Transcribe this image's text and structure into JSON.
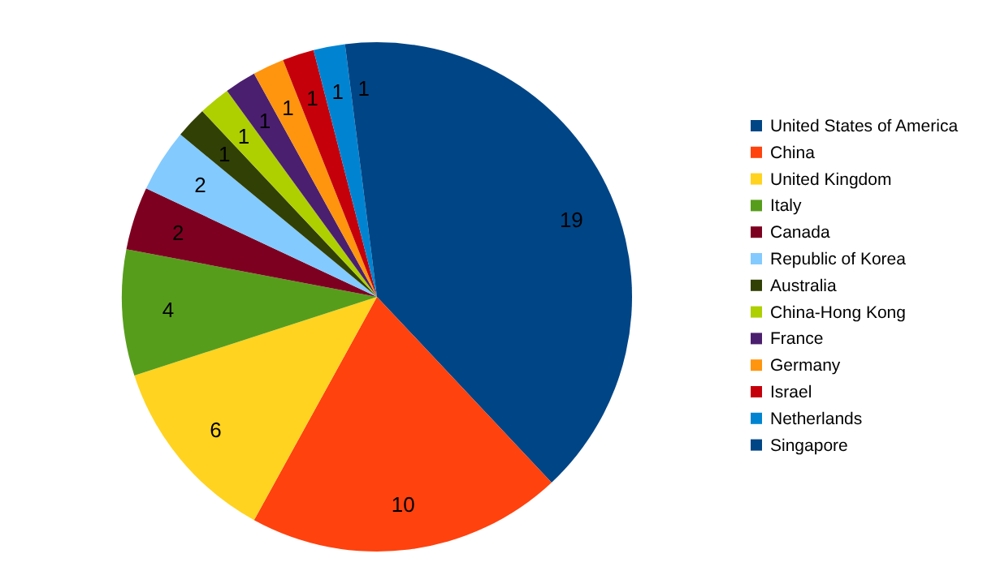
{
  "chart_data": {
    "type": "pie",
    "categories": [
      "United States of America",
      "China",
      "United Kingdom",
      "Italy",
      "Canada",
      "Republic of Korea",
      "Australia",
      "China-Hong Kong",
      "France",
      "Germany",
      "Israel",
      "Netherlands",
      "Singapore"
    ],
    "values": [
      19,
      10,
      6,
      4,
      2,
      2,
      1,
      1,
      1,
      1,
      1,
      1,
      1
    ],
    "colors": [
      "#004586",
      "#ff420e",
      "#ffd320",
      "#579d1c",
      "#7e0021",
      "#83caff",
      "#314004",
      "#aecf00",
      "#4b1f6f",
      "#ff950e",
      "#c5000b",
      "#0084d1",
      "#004586"
    ],
    "data_labels": true,
    "legend": "right"
  }
}
